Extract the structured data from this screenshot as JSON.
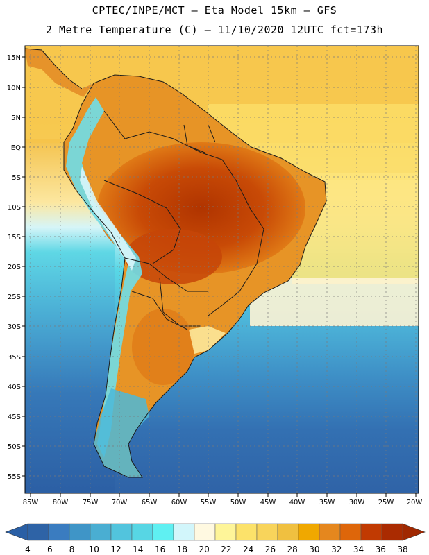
{
  "title": {
    "line1": "CPTEC/INPE/MCT –  Eta Model 15km – GFS",
    "line2": "2 Metre Temperature (C) – 11/10/2020 12UTC fct=173h"
  },
  "axes": {
    "lat_labels": [
      "15N",
      "10N",
      "5N",
      "EQ",
      "5S",
      "10S",
      "15S",
      "20S",
      "25S",
      "30S",
      "35S",
      "40S",
      "45S",
      "50S",
      "55S"
    ],
    "lon_labels": [
      "85W",
      "80W",
      "75W",
      "70W",
      "65W",
      "60W",
      "55W",
      "50W",
      "45W",
      "40W",
      "35W",
      "30W",
      "25W",
      "20W"
    ]
  },
  "colorbar": {
    "labels": [
      "4",
      "6",
      "8",
      "10",
      "12",
      "14",
      "16",
      "18",
      "20",
      "22",
      "24",
      "26",
      "28",
      "30",
      "32",
      "34",
      "36",
      "38"
    ],
    "colors": [
      "#2e63a6",
      "#3a7cc0",
      "#3f95c7",
      "#4aaed2",
      "#52c4dd",
      "#57d6e4",
      "#5ff0f2",
      "#d2f6fb",
      "#fff9e1",
      "#fef599",
      "#fce26a",
      "#f8d45b",
      "#f0c040",
      "#f0a800",
      "#e5871e",
      "#de660a",
      "#c13a02",
      "#aa2b01"
    ],
    "low_color": "#2a5fa5",
    "high_color": "#a02801"
  },
  "legend_items": []
}
